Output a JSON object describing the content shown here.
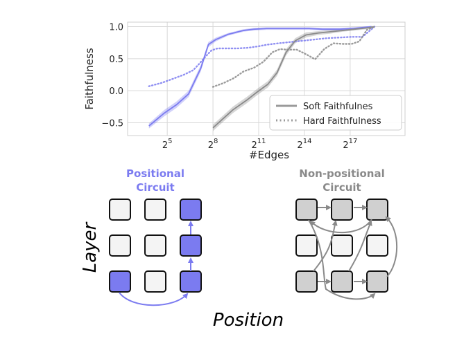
{
  "chart_data": {
    "type": "line",
    "xlabel": "#Edges",
    "ylabel": "Faithfulness",
    "xscale": "log2",
    "xlim": [
      2.4,
      20.6
    ],
    "ylim": [
      -0.7,
      1.07
    ],
    "grid": true,
    "legend_position": "bottom-right",
    "x_ticks": [
      "2^5",
      "2^8",
      "2^11",
      "2^14",
      "2^17"
    ],
    "x_tick_exponents": [
      5,
      8,
      11,
      14,
      17
    ],
    "y_ticks": [
      "−0.5",
      "0.0",
      "0.5",
      "1.0"
    ],
    "y_tick_values": [
      -0.5,
      0.0,
      0.5,
      1.0
    ],
    "series": [
      {
        "name": "Soft Faithfulnes",
        "style": "solid",
        "color": "#7b7bf0",
        "x_log2": [
          3.8,
          4.8,
          5.6,
          6.4,
          7.2,
          7.7,
          8.2,
          9.0,
          10.0,
          10.7,
          11.5,
          12.3,
          13.2,
          14.3,
          15.2,
          16.3,
          17.2,
          18.4
        ],
        "y": [
          -0.55,
          -0.35,
          -0.22,
          -0.05,
          0.35,
          0.72,
          0.8,
          0.88,
          0.94,
          0.96,
          0.97,
          0.97,
          0.97,
          0.97,
          0.96,
          0.96,
          0.97,
          1.0
        ],
        "band": [
          0.04,
          0.05,
          0.05,
          0.05,
          0.05,
          0.04,
          0.03,
          0.02,
          0.02,
          0.02,
          0.02,
          0.02,
          0.02,
          0.02,
          0.02,
          0.02,
          0.02,
          0.01
        ]
      },
      {
        "name": "Hard Faithfulness",
        "style": "dotted",
        "color": "#7b7bf0",
        "x_log2": [
          3.8,
          4.6,
          5.3,
          6.1,
          6.7,
          7.1,
          7.5,
          7.9,
          8.3,
          8.9,
          9.6,
          10.3,
          10.9,
          11.6,
          12.3,
          13.1,
          13.9,
          14.7,
          15.5,
          16.3,
          17.1,
          17.8,
          18.2,
          18.6
        ],
        "y": [
          0.07,
          0.12,
          0.18,
          0.25,
          0.32,
          0.42,
          0.53,
          0.63,
          0.66,
          0.66,
          0.66,
          0.67,
          0.69,
          0.72,
          0.74,
          0.76,
          0.78,
          0.8,
          0.82,
          0.83,
          0.84,
          0.84,
          0.92,
          1.0
        ]
      },
      {
        "name": "Soft Faithfulnes",
        "style": "solid",
        "color": "#8a8a8a",
        "x_log2": [
          8.0,
          8.6,
          9.3,
          10.2,
          10.9,
          11.6,
          12.2,
          12.8,
          13.4,
          14.1,
          14.9,
          15.7,
          16.5,
          17.3,
          18.1,
          18.6
        ],
        "y": [
          -0.58,
          -0.45,
          -0.3,
          -0.15,
          -0.02,
          0.1,
          0.28,
          0.6,
          0.78,
          0.87,
          0.9,
          0.92,
          0.94,
          0.96,
          0.98,
          1.0
        ],
        "band": [
          0.05,
          0.05,
          0.05,
          0.05,
          0.05,
          0.05,
          0.05,
          0.05,
          0.04,
          0.04,
          0.03,
          0.03,
          0.02,
          0.02,
          0.02,
          0.01
        ]
      },
      {
        "name": "Hard Faithfulness",
        "style": "dotted",
        "color": "#8a8a8a",
        "x_log2": [
          8.0,
          8.7,
          9.4,
          10.0,
          10.7,
          11.3,
          11.9,
          12.4,
          12.9,
          13.5,
          14.1,
          14.7,
          15.3,
          15.9,
          16.5,
          17.1,
          17.6,
          18.1,
          18.6
        ],
        "y": [
          0.06,
          0.12,
          0.2,
          0.3,
          0.36,
          0.45,
          0.6,
          0.65,
          0.64,
          0.64,
          0.57,
          0.49,
          0.65,
          0.74,
          0.73,
          0.73,
          0.77,
          0.95,
          1.0
        ]
      }
    ]
  },
  "diagram": {
    "positional_title": [
      "Positional",
      "Circuit"
    ],
    "nonpositional_title": [
      "Non-positional",
      "Circuit"
    ],
    "layer_label": "Layer",
    "position_label": "Position",
    "positional_color": "#7b7bf0",
    "nonpositional_color": "#8a8a8a",
    "positional_nodes": [
      [
        "none",
        "none",
        "active"
      ],
      [
        "none",
        "none",
        "active"
      ],
      [
        "active",
        "none",
        "active"
      ]
    ],
    "nonpositional_nodes": [
      [
        "active",
        "active",
        "active"
      ],
      [
        "none",
        "none",
        "none"
      ],
      [
        "active",
        "active",
        "active"
      ]
    ]
  }
}
